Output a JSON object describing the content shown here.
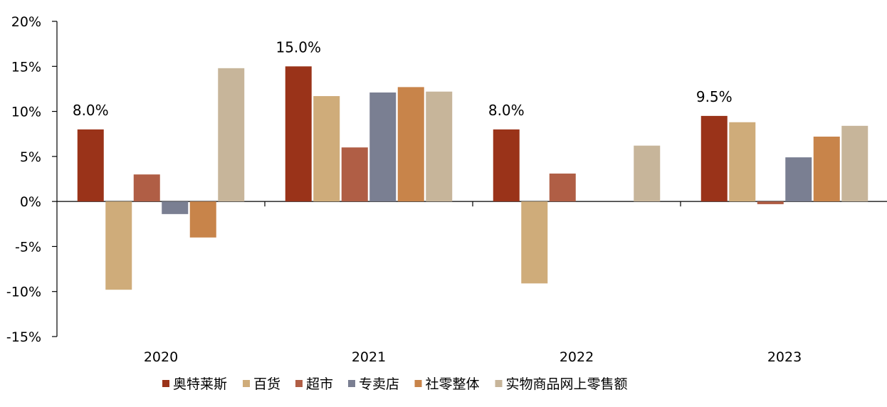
{
  "chart_data": {
    "type": "bar",
    "categories": [
      "2020",
      "2021",
      "2022",
      "2023"
    ],
    "ylim": [
      -15,
      20
    ],
    "yticks": [
      -15,
      -10,
      -5,
      0,
      5,
      10,
      15,
      20
    ],
    "ytick_labels": [
      "-15%",
      "-10%",
      "-5%",
      "0%",
      "5%",
      "10%",
      "15%",
      "20%"
    ],
    "unit": "%",
    "legend_position": "bottom",
    "series": [
      {
        "name": "奥特莱斯",
        "color": "#9A3319",
        "values": [
          8.0,
          15.0,
          8.0,
          9.5
        ]
      },
      {
        "name": "百货",
        "color": "#CFAC7A",
        "values": [
          -9.8,
          11.7,
          -9.1,
          8.8
        ]
      },
      {
        "name": "超市",
        "color": "#B05E45",
        "values": [
          3.0,
          6.0,
          3.1,
          -0.3
        ]
      },
      {
        "name": "专卖店",
        "color": "#7A7F92",
        "values": [
          -1.4,
          12.1,
          null,
          4.9
        ]
      },
      {
        "name": "社零整体",
        "color": "#C8844A",
        "values": [
          -4.0,
          12.7,
          null,
          7.2
        ]
      },
      {
        "name": "实物商品网上零售额",
        "color": "#C7B59A",
        "values": [
          14.8,
          12.2,
          6.2,
          8.4
        ]
      }
    ],
    "annotations": [
      {
        "category": "2020",
        "series": "奥特莱斯",
        "text": "8.0%"
      },
      {
        "category": "2021",
        "series": "奥特莱斯",
        "text": "15.0%"
      },
      {
        "category": "2022",
        "series": "奥特莱斯",
        "text": "8.0%"
      },
      {
        "category": "2023",
        "series": "奥特莱斯",
        "text": "9.5%"
      }
    ]
  }
}
